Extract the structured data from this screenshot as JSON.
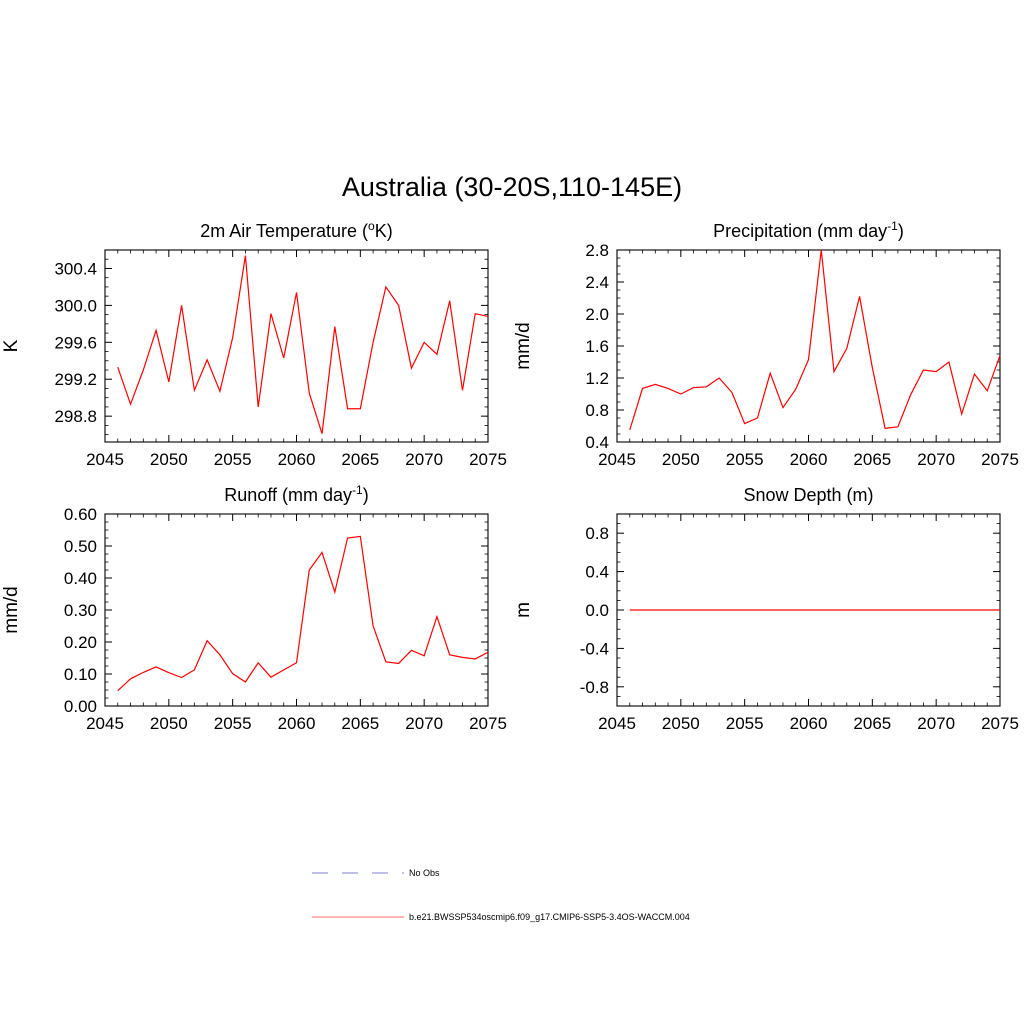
{
  "figure": {
    "title": "Australia (30-20S,110-145E)"
  },
  "legend": {
    "obs_label": "No Obs",
    "obs_color": "#9999dd",
    "model_label": "b.e21.BWSSP534oscmip6.f09_g17.CMIP6-SSP5-3.4OS-WACCM.004",
    "model_color": "#ff0000"
  },
  "chart_data": [
    {
      "type": "line",
      "title": "2m Air Temperature (oK)",
      "title_parts": [
        "2m Air Temperature (",
        "o",
        "K)"
      ],
      "ylabel": "K",
      "xlim": [
        2045,
        2075
      ],
      "ylim": [
        298.52,
        300.6
      ],
      "xticks": [
        2045,
        2050,
        2055,
        2060,
        2065,
        2070,
        2075
      ],
      "yticks": [
        298.8,
        299.2,
        299.6,
        300.0,
        300.4
      ],
      "ytick_labels": [
        "298.8",
        "299.2",
        "299.6",
        "300.0",
        "300.4"
      ],
      "x": [
        2046,
        2047,
        2048,
        2049,
        2050,
        2051,
        2052,
        2053,
        2054,
        2055,
        2056,
        2057,
        2058,
        2059,
        2060,
        2061,
        2062,
        2063,
        2064,
        2065,
        2066,
        2067,
        2068,
        2069,
        2070,
        2071,
        2072,
        2073,
        2074,
        2075
      ],
      "series": [
        {
          "values": [
            299.33,
            298.93,
            299.3,
            299.73,
            299.17,
            300.0,
            299.08,
            299.41,
            299.07,
            299.65,
            300.54,
            298.9,
            299.91,
            299.43,
            300.14,
            299.05,
            298.61,
            299.77,
            298.88,
            298.88,
            299.6,
            300.2,
            300.0,
            299.32,
            299.6,
            299.47,
            300.05,
            299.08,
            299.91,
            299.88
          ],
          "color": "#ff0000"
        }
      ]
    },
    {
      "type": "line",
      "title": "Precipitation (mm day-1)",
      "title_parts": [
        "Precipitation (mm day",
        "-1",
        ")"
      ],
      "ylabel": "mm/d",
      "xlim": [
        2045,
        2075
      ],
      "ylim": [
        0.4,
        2.8
      ],
      "xticks": [
        2045,
        2050,
        2055,
        2060,
        2065,
        2070,
        2075
      ],
      "yticks": [
        0.4,
        0.8,
        1.2,
        1.6,
        2.0,
        2.4,
        2.8
      ],
      "ytick_labels": [
        "0.4",
        "0.8",
        "1.2",
        "1.6",
        "2.0",
        "2.4",
        "2.8"
      ],
      "x": [
        2046,
        2047,
        2048,
        2049,
        2050,
        2051,
        2052,
        2053,
        2054,
        2055,
        2056,
        2057,
        2058,
        2059,
        2060,
        2061,
        2062,
        2063,
        2064,
        2065,
        2066,
        2067,
        2068,
        2069,
        2070,
        2071,
        2072,
        2073,
        2074,
        2075
      ],
      "series": [
        {
          "values": [
            0.55,
            1.07,
            1.12,
            1.07,
            1.0,
            1.08,
            1.09,
            1.2,
            1.02,
            0.63,
            0.7,
            1.26,
            0.83,
            1.06,
            1.43,
            2.8,
            1.28,
            1.57,
            2.22,
            1.33,
            0.57,
            0.59,
            0.99,
            1.3,
            1.28,
            1.4,
            0.75,
            1.25,
            1.04,
            1.48
          ],
          "color": "#ff0000"
        }
      ]
    },
    {
      "type": "line",
      "title": "Runoff (mm day-1)",
      "title_parts": [
        "Runoff (mm day",
        "-1",
        ")"
      ],
      "ylabel": "mm/d",
      "xlim": [
        2045,
        2075
      ],
      "ylim": [
        0.0,
        0.6
      ],
      "xticks": [
        2045,
        2050,
        2055,
        2060,
        2065,
        2070,
        2075
      ],
      "yticks": [
        0.0,
        0.1,
        0.2,
        0.3,
        0.4,
        0.5,
        0.6
      ],
      "ytick_labels": [
        "0.00",
        "0.10",
        "0.20",
        "0.30",
        "0.40",
        "0.50",
        "0.60"
      ],
      "x": [
        2046,
        2047,
        2048,
        2049,
        2050,
        2051,
        2052,
        2053,
        2054,
        2055,
        2056,
        2057,
        2058,
        2059,
        2060,
        2061,
        2062,
        2063,
        2064,
        2065,
        2066,
        2067,
        2068,
        2069,
        2070,
        2071,
        2072,
        2073,
        2074,
        2075
      ],
      "series": [
        {
          "values": [
            0.048,
            0.085,
            0.105,
            0.122,
            0.104,
            0.089,
            0.113,
            0.204,
            0.16,
            0.101,
            0.075,
            0.135,
            0.09,
            0.113,
            0.135,
            0.425,
            0.48,
            0.356,
            0.525,
            0.53,
            0.25,
            0.138,
            0.133,
            0.174,
            0.157,
            0.279,
            0.16,
            0.152,
            0.147,
            0.168
          ],
          "color": "#ff0000"
        }
      ]
    },
    {
      "type": "line",
      "title": "Snow Depth (m)",
      "title_parts": [
        "Snow Depth (m)"
      ],
      "ylabel": "m",
      "xlim": [
        2045,
        2075
      ],
      "ylim": [
        -1.0,
        1.0
      ],
      "xticks": [
        2045,
        2050,
        2055,
        2060,
        2065,
        2070,
        2075
      ],
      "yticks": [
        -0.8,
        -0.4,
        0.0,
        0.4,
        0.8
      ],
      "ytick_labels": [
        "-0.8",
        "-0.4",
        "0.0",
        "0.4",
        "0.8"
      ],
      "x": [
        2046,
        2047,
        2048,
        2049,
        2050,
        2051,
        2052,
        2053,
        2054,
        2055,
        2056,
        2057,
        2058,
        2059,
        2060,
        2061,
        2062,
        2063,
        2064,
        2065,
        2066,
        2067,
        2068,
        2069,
        2070,
        2071,
        2072,
        2073,
        2074,
        2075
      ],
      "series": [
        {
          "values": [
            0,
            0,
            0,
            0,
            0,
            0,
            0,
            0,
            0,
            0,
            0,
            0,
            0,
            0,
            0,
            0,
            0,
            0,
            0,
            0,
            0,
            0,
            0,
            0,
            0,
            0,
            0,
            0,
            0,
            0
          ],
          "color": "#ff0000"
        }
      ]
    }
  ]
}
